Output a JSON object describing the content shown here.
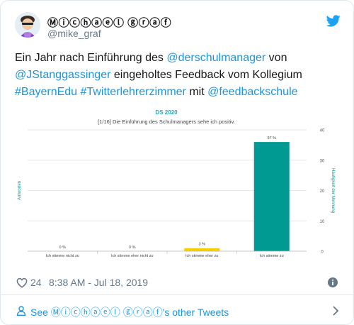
{
  "tweet": {
    "display_name": "Ⓜⓘⓒⓗⓐⓔⓛ ⓖⓡⓐⓕ",
    "handle": "@mike_graf",
    "text_part1": "Ein Jahr nach Einführung des ",
    "mention_derschulmanager": "@derschulmanager",
    "text_part2": " von ",
    "mention_jstanggassinger": "@JStanggassinger",
    "text_part3": " eingeholtes Feedback vom Kollegium ",
    "hashtag_bayernedu": "#BayernEdu",
    "text_part4": " ",
    "hashtag_twitterlehrerzimmer": "#Twitterlehrerzimmer",
    "text_part5": " mit ",
    "mention_feedbackschule": "@feedbackschule",
    "likes": "24",
    "timestamp": "8:38 AM - Jul 18, 2019",
    "footer_see": "See ",
    "footer_name": "Ⓜⓘⓒⓗⓐⓔⓛ ⓖⓡⓐⓕ",
    "footer_suffix": "'s other Tweets"
  },
  "colors": {
    "link": "#1b95e0",
    "muted": "#657786",
    "twitter_blue": "#1da1f2",
    "bar_teal": "#009a93",
    "bar_yellow": "#f5d000",
    "chart_title": "#2aa7b8"
  },
  "icons": {
    "brand": "twitter-bird-icon",
    "like": "heart-icon",
    "info": "info-icon",
    "person": "person-icon",
    "chevron": "chevron-right-icon"
  },
  "chart_data": {
    "type": "bar",
    "title": "DS 2020",
    "subtitle": "[1/16] Die Einführung des Schulmanagers sehe ich positiv.",
    "categories": [
      "Ich stimme nicht zu",
      "Ich stimme eher nicht zu",
      "Ich stimme eher zu",
      "Ich stimme zu"
    ],
    "values": [
      0,
      0,
      1,
      36
    ],
    "data_labels": [
      "0 %",
      "0 %",
      "3 %",
      "97 %"
    ],
    "bar_colors": [
      "#009a93",
      "#009a93",
      "#f5d000",
      "#009a93"
    ],
    "ylabel_left": "Antworten",
    "ylabel_right": "Häufigkeit der Nennung",
    "y_ticks_right": [
      "0",
      "10",
      "20",
      "30",
      "40"
    ],
    "ylim": [
      0,
      40
    ],
    "grid": true
  }
}
